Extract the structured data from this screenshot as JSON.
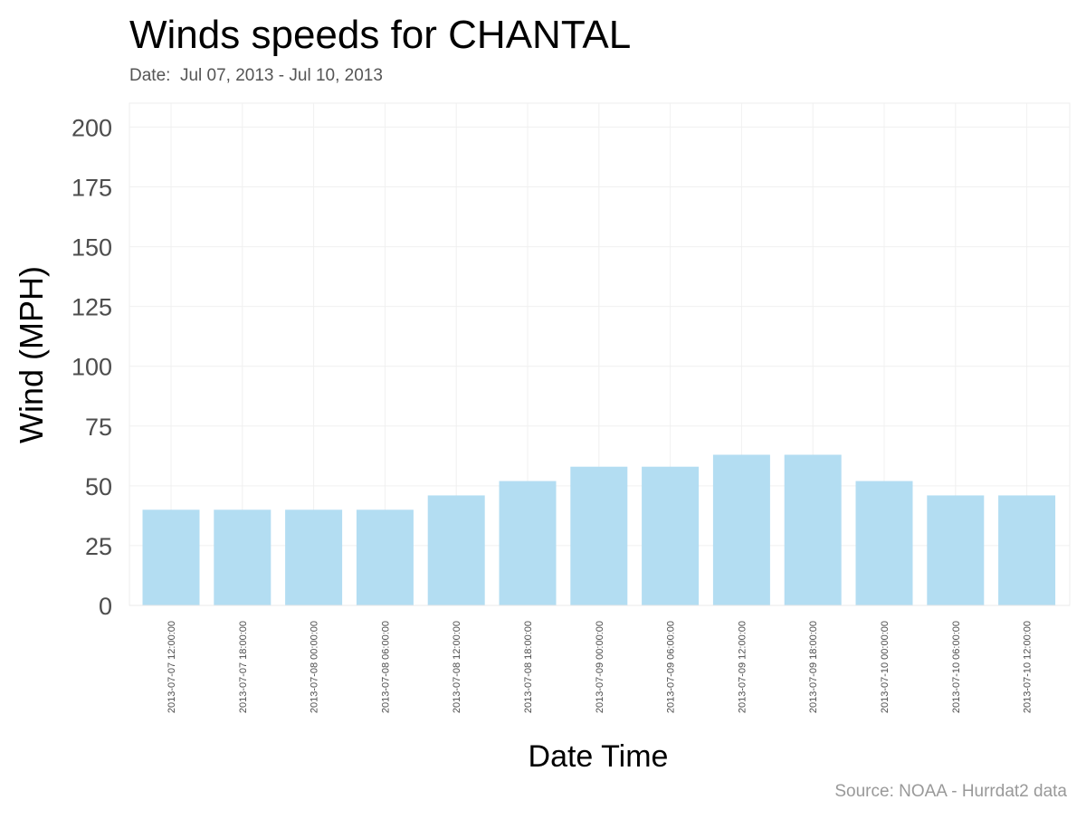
{
  "chart_data": {
    "type": "bar",
    "title": "Winds speeds for CHANTAL",
    "subtitle": "Date:  Jul 07, 2013 - Jul 10, 2013",
    "xlabel": "Date Time",
    "ylabel": "Wind (MPH)",
    "caption": "Source: NOAA - Hurrdat2 data",
    "ylim": [
      0,
      210
    ],
    "yticks": [
      0,
      25,
      50,
      75,
      100,
      125,
      150,
      175,
      200
    ],
    "grid": true,
    "bar_color": "#b3ddf2",
    "categories": [
      "2013-07-07 12:00:00",
      "2013-07-07 18:00:00",
      "2013-07-08 00:00:00",
      "2013-07-08 06:00:00",
      "2013-07-08 12:00:00",
      "2013-07-08 18:00:00",
      "2013-07-09 00:00:00",
      "2013-07-09 06:00:00",
      "2013-07-09 12:00:00",
      "2013-07-09 18:00:00",
      "2013-07-10 00:00:00",
      "2013-07-10 06:00:00",
      "2013-07-10 12:00:00"
    ],
    "values": [
      40,
      40,
      40,
      40,
      46,
      52,
      58,
      58,
      63,
      63,
      52,
      46,
      46
    ]
  }
}
